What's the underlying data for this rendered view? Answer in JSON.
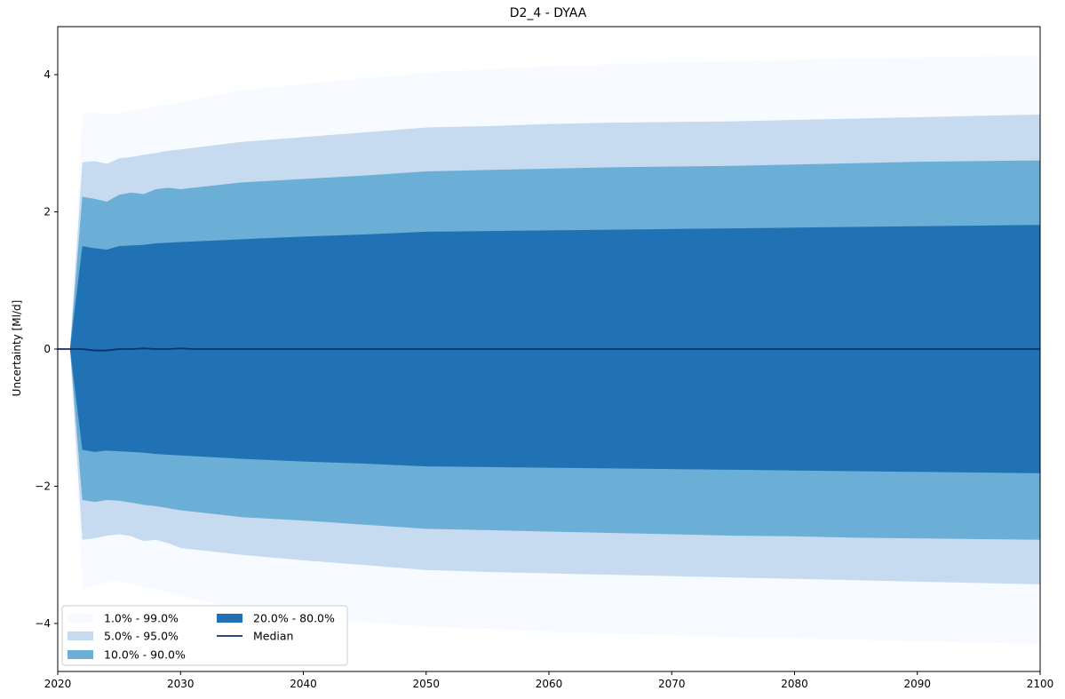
{
  "chart_data": {
    "type": "area",
    "title": "D2_4 - DYAA",
    "xlabel": "",
    "ylabel": "Uncertainty [Ml/d]",
    "xlim": [
      2020,
      2100
    ],
    "ylim": [
      -4.7,
      4.7
    ],
    "xticks": [
      2020,
      2030,
      2040,
      2050,
      2060,
      2070,
      2080,
      2090,
      2100
    ],
    "xtick_labels": [
      "2020",
      "2030",
      "2040",
      "2050",
      "2060",
      "2070",
      "2080",
      "2090",
      "2100"
    ],
    "yticks": [
      -4,
      -2,
      0,
      2,
      4
    ],
    "ytick_labels": [
      "−4",
      "−2",
      "0",
      "2",
      "4"
    ],
    "grid": false,
    "legend_placement": "lower-left",
    "x": [
      2021,
      2022,
      2023,
      2024,
      2025,
      2026,
      2027,
      2028,
      2029,
      2030,
      2035,
      2040,
      2045,
      2050,
      2055,
      2060,
      2065,
      2070,
      2075,
      2080,
      2085,
      2090,
      2095,
      2100
    ],
    "bands": [
      {
        "name": "1.0% - 99.0%",
        "color": "#f7fbff",
        "upper": [
          0,
          3.45,
          3.45,
          3.42,
          3.44,
          3.48,
          3.5,
          3.54,
          3.57,
          3.6,
          3.78,
          3.86,
          3.95,
          4.03,
          4.08,
          4.12,
          4.15,
          4.18,
          4.2,
          4.22,
          4.24,
          4.25,
          4.27,
          4.28
        ],
        "lower": [
          0,
          -3.5,
          -3.45,
          -3.4,
          -3.38,
          -3.42,
          -3.48,
          -3.5,
          -3.55,
          -3.6,
          -3.8,
          -3.9,
          -3.98,
          -4.05,
          -4.08,
          -4.12,
          -4.15,
          -4.18,
          -4.2,
          -4.22,
          -4.24,
          -4.26,
          -4.28,
          -4.3
        ]
      },
      {
        "name": "5.0% - 95.0%",
        "color": "#c6dbef",
        "upper": [
          0,
          2.72,
          2.74,
          2.7,
          2.78,
          2.8,
          2.83,
          2.86,
          2.89,
          2.91,
          3.02,
          3.09,
          3.16,
          3.23,
          3.25,
          3.28,
          3.3,
          3.31,
          3.32,
          3.34,
          3.36,
          3.38,
          3.4,
          3.42
        ],
        "lower": [
          0,
          -2.78,
          -2.76,
          -2.72,
          -2.7,
          -2.73,
          -2.8,
          -2.78,
          -2.83,
          -2.9,
          -3.0,
          -3.08,
          -3.15,
          -3.22,
          -3.25,
          -3.27,
          -3.29,
          -3.31,
          -3.33,
          -3.35,
          -3.37,
          -3.39,
          -3.41,
          -3.43
        ]
      },
      {
        "name": "10.0% - 90.0%",
        "color": "#6baed6",
        "upper": [
          0,
          2.22,
          2.19,
          2.15,
          2.25,
          2.28,
          2.26,
          2.33,
          2.35,
          2.33,
          2.43,
          2.48,
          2.53,
          2.59,
          2.61,
          2.63,
          2.65,
          2.66,
          2.67,
          2.69,
          2.71,
          2.73,
          2.74,
          2.75
        ],
        "lower": [
          0,
          -2.2,
          -2.23,
          -2.2,
          -2.21,
          -2.24,
          -2.27,
          -2.29,
          -2.32,
          -2.35,
          -2.45,
          -2.5,
          -2.56,
          -2.62,
          -2.64,
          -2.66,
          -2.68,
          -2.7,
          -2.72,
          -2.73,
          -2.75,
          -2.76,
          -2.77,
          -2.78
        ]
      },
      {
        "name": "20.0% - 80.0%",
        "color": "#2171b5",
        "upper": [
          0,
          1.5,
          1.47,
          1.45,
          1.5,
          1.51,
          1.52,
          1.54,
          1.55,
          1.56,
          1.6,
          1.64,
          1.67,
          1.71,
          1.72,
          1.73,
          1.74,
          1.75,
          1.76,
          1.77,
          1.78,
          1.79,
          1.8,
          1.81
        ],
        "lower": [
          0,
          -1.47,
          -1.5,
          -1.48,
          -1.49,
          -1.5,
          -1.51,
          -1.53,
          -1.54,
          -1.55,
          -1.6,
          -1.64,
          -1.67,
          -1.71,
          -1.72,
          -1.73,
          -1.74,
          -1.75,
          -1.76,
          -1.77,
          -1.78,
          -1.79,
          -1.8,
          -1.81
        ]
      }
    ],
    "median": {
      "name": "Median",
      "color": "#08306b",
      "x": [
        2020,
        2021,
        2022,
        2023,
        2024,
        2025,
        2026,
        2027,
        2028,
        2029,
        2030,
        2031,
        2100
      ],
      "y": [
        0,
        0,
        0,
        -0.02,
        -0.02,
        0.0,
        0.0,
        0.01,
        0.0,
        0.0,
        0.01,
        0.0,
        0.0
      ]
    },
    "legend": [
      {
        "label": "1.0% - 99.0%",
        "color": "#f7fbff",
        "kind": "patch"
      },
      {
        "label": "5.0% - 95.0%",
        "color": "#c6dbef",
        "kind": "patch"
      },
      {
        "label": "10.0% - 90.0%",
        "color": "#6baed6",
        "kind": "patch"
      },
      {
        "label": "20.0% - 80.0%",
        "color": "#2171b5",
        "kind": "patch"
      },
      {
        "label": "Median",
        "color": "#08306b",
        "kind": "line"
      }
    ]
  }
}
